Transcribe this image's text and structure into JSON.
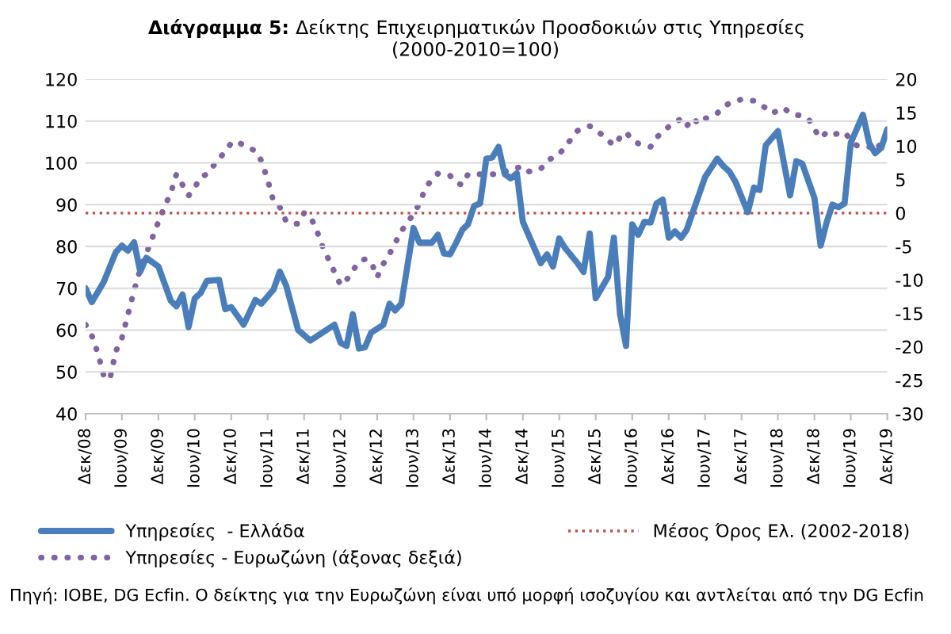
{
  "chart_data": {
    "type": "line",
    "title": "Διάγραμμα 5: Δείκτης Επιχειρηματικών Προσδοκιών στις Υπηρεσίες",
    "subtitle": "(2000-2010=100)",
    "annotations": [
      "Πηγή: IOBE, DG Ecfin. Ο δείκτης για την Ευρωζώνη είναι υπό μορφή ισοζυγίου και αντλείται από την DG Ecfin"
    ],
    "series": [
      {
        "name": "Υπηρεσίες  - Ελλάδα",
        "color": "#4a7ebb",
        "line_style": "solid",
        "x": [
          "2008-12",
          "2009-01",
          "2009-03",
          "2009-05",
          "2009-06",
          "2009-07",
          "2009-08",
          "2009-09",
          "2009-10",
          "2009-12",
          "2010-02",
          "2010-03",
          "2010-04",
          "2010-05",
          "2010-06",
          "2010-07",
          "2010-08",
          "2010-10",
          "2010-11",
          "2010-12",
          "2011-02",
          "2011-04",
          "2011-05",
          "2011-07",
          "2011-08",
          "2011-09",
          "2011-11",
          "2012-01",
          "2012-05",
          "2012-06",
          "2012-07",
          "2012-08",
          "2012-09",
          "2012-10",
          "2012-11",
          "2013-01",
          "2013-02",
          "2013-03",
          "2013-04",
          "2013-06",
          "2013-07",
          "2013-09",
          "2013-10",
          "2013-11",
          "2013-12",
          "2014-01",
          "2014-02",
          "2014-03",
          "2014-04",
          "2014-05",
          "2014-06",
          "2014-07",
          "2014-08",
          "2014-09",
          "2014-10",
          "2014-11",
          "2014-12",
          "2015-03",
          "2015-04",
          "2015-05",
          "2015-06",
          "2015-07",
          "2015-09",
          "2015-10",
          "2015-11",
          "2015-12",
          "2016-02",
          "2016-03",
          "2016-04",
          "2016-05",
          "2016-06",
          "2016-07",
          "2016-08",
          "2016-09",
          "2016-10",
          "2016-11",
          "2016-12",
          "2017-01",
          "2017-02",
          "2017-03",
          "2017-06",
          "2017-08",
          "2017-09",
          "2017-10",
          "2017-11",
          "2018-01",
          "2018-02",
          "2018-03",
          "2018-04",
          "2018-06",
          "2018-08",
          "2018-09",
          "2018-10",
          "2018-12",
          "2019-01",
          "2019-02",
          "2019-03",
          "2019-04",
          "2019-05",
          "2019-06",
          "2019-08",
          "2019-09",
          "2019-10",
          "2019-11",
          "2019-12"
        ],
        "values": [
          70,
          66.7,
          71.4,
          78.6,
          80.2,
          79,
          81,
          74,
          77.3,
          75.2,
          67,
          65.7,
          68.5,
          60.7,
          67.6,
          68.9,
          71.8,
          72,
          65,
          65.5,
          61.3,
          67.2,
          66.3,
          69.7,
          74,
          70.8,
          60,
          57.5,
          61.3,
          56.9,
          56.2,
          63.8,
          55.6,
          55.9,
          59.4,
          61.3,
          66.3,
          64.7,
          66.3,
          84.4,
          80.9,
          80.9,
          82.8,
          78.3,
          78.1,
          80.9,
          84,
          85.3,
          89.7,
          90.3,
          101,
          101.3,
          103.8,
          97.3,
          96.3,
          97.5,
          85.9,
          76,
          78.1,
          75.2,
          81.9,
          79.6,
          76,
          73.9,
          83.1,
          67.6,
          72.7,
          82.1,
          63.8,
          56.2,
          85.3,
          82.8,
          85.9,
          85.7,
          90.3,
          91.2,
          82.1,
          83.6,
          82.1,
          84,
          96.6,
          101,
          99.2,
          97.9,
          95.4,
          88.2,
          94.1,
          93.5,
          104.2,
          107.6,
          92.2,
          100.4,
          99.8,
          91.6,
          80.2,
          85.9,
          90,
          89.4,
          90.3,
          104.8,
          111.5,
          104.8,
          102.3,
          103.6,
          108
        ]
      },
      {
        "name": "Υπηρεσίες - Ευρωζώνη (άξονας δεξιά)",
        "color": "#8064a2",
        "line_style": "dotted",
        "axis": "y2",
        "x": [
          "2008-12",
          "2009-01",
          "2009-02",
          "2009-03",
          "2009-04",
          "2009-05",
          "2009-06",
          "2009-07",
          "2009-08",
          "2009-09",
          "2009-10",
          "2009-11",
          "2009-12",
          "2010-01",
          "2010-02",
          "2010-03",
          "2010-04",
          "2010-05",
          "2010-06",
          "2010-07",
          "2010-08",
          "2010-09",
          "2010-10",
          "2010-11",
          "2010-12",
          "2011-01",
          "2011-02",
          "2011-03",
          "2011-04",
          "2011-05",
          "2011-06",
          "2011-07",
          "2011-08",
          "2011-09",
          "2011-10",
          "2011-11",
          "2011-12",
          "2012-01",
          "2012-02",
          "2012-03",
          "2012-04",
          "2012-05",
          "2012-06",
          "2012-07",
          "2012-08",
          "2012-09",
          "2012-10",
          "2012-11",
          "2012-12",
          "2013-01",
          "2013-02",
          "2013-03",
          "2013-04",
          "2013-05",
          "2013-06",
          "2013-07",
          "2013-08",
          "2013-09",
          "2013-10",
          "2013-11",
          "2013-12",
          "2014-01",
          "2014-02",
          "2014-03",
          "2014-05",
          "2014-08",
          "2014-09",
          "2014-12",
          "2015-01",
          "2015-03",
          "2015-04",
          "2015-06",
          "2015-07",
          "2015-09",
          "2015-11",
          "2015-12",
          "2016-03",
          "2016-04",
          "2016-05",
          "2016-06",
          "2016-07",
          "2016-09",
          "2016-10",
          "2016-11",
          "2016-12",
          "2017-02",
          "2017-03",
          "2017-04",
          "2017-05",
          "2017-06",
          "2017-08",
          "2017-09",
          "2017-10",
          "2017-12",
          "2018-01",
          "2018-02",
          "2018-04",
          "2018-05",
          "2018-07",
          "2018-08",
          "2018-10",
          "2018-11",
          "2018-12",
          "2019-01",
          "2019-02",
          "2019-03",
          "2019-05",
          "2019-06",
          "2019-07",
          "2019-09",
          "2019-10",
          "2019-11",
          "2019-12"
        ],
        "values": [
          -16.7,
          -18.3,
          -21,
          -24.2,
          -24.9,
          -20.7,
          -18.7,
          -15.2,
          -11.6,
          -8.4,
          -6.1,
          -3.7,
          -1.3,
          1,
          3,
          5.8,
          4.2,
          2.6,
          3.8,
          5.4,
          5.8,
          7,
          8.2,
          9.1,
          10.5,
          10.7,
          10.1,
          9.7,
          9.3,
          7.8,
          5,
          1.7,
          0.9,
          -1.2,
          -1.6,
          -1.6,
          0,
          -0.5,
          -2.5,
          -4.9,
          -6.9,
          -8.8,
          -10.8,
          -10,
          -8.6,
          -7.3,
          -6.9,
          -7.3,
          -9.6,
          -7.6,
          -6.1,
          -4.5,
          -2.7,
          -1.5,
          -0.1,
          1.4,
          3.8,
          5,
          5.9,
          5.6,
          5.6,
          4.5,
          4.2,
          5.8,
          5.8,
          5.8,
          6.2,
          7,
          6.2,
          6.6,
          7.8,
          8.8,
          9.9,
          12.3,
          13,
          12.5,
          10.1,
          11.3,
          12.1,
          10.9,
          10.4,
          9.9,
          11.3,
          12.1,
          12.9,
          14.1,
          13,
          14.2,
          13.3,
          14.1,
          14.9,
          15.9,
          16.4,
          17,
          16.8,
          16.8,
          15.7,
          14.9,
          15.7,
          14.9,
          14.5,
          14.1,
          12.5,
          11.2,
          12.1,
          11.7,
          12.1,
          10.9,
          10.1,
          9.9,
          9.3,
          10.5,
          11.3
        ]
      }
    ],
    "ref_lines": [
      {
        "axis": "y",
        "value": 88,
        "label": "Μέσος Όρος Ελ. (2002-2018)",
        "color": "#c0504d",
        "line_style": "dotted"
      }
    ],
    "xlim": [
      "2008-12",
      "2019-12"
    ],
    "xticks": [
      {
        "value": "2008-12",
        "label": "Δεκ/08"
      },
      {
        "value": "2009-06",
        "label": "Ιουν/09"
      },
      {
        "value": "2009-12",
        "label": "Δεκ/09"
      },
      {
        "value": "2010-06",
        "label": "Ιουν/10"
      },
      {
        "value": "2010-12",
        "label": "Δεκ/10"
      },
      {
        "value": "2011-06",
        "label": "Ιουν/11"
      },
      {
        "value": "2011-12",
        "label": "Δεκ/11"
      },
      {
        "value": "2012-06",
        "label": "Ιουν/12"
      },
      {
        "value": "2012-12",
        "label": "Δεκ/12"
      },
      {
        "value": "2013-06",
        "label": "Ιουν/13"
      },
      {
        "value": "2013-12",
        "label": "Δεκ/13"
      },
      {
        "value": "2014-06",
        "label": "Ιουν/14"
      },
      {
        "value": "2014-12",
        "label": "Δεκ/14"
      },
      {
        "value": "2015-06",
        "label": "Ιουν/15"
      },
      {
        "value": "2015-12",
        "label": "Δεκ/15"
      },
      {
        "value": "2016-06",
        "label": "Ιουν/16"
      },
      {
        "value": "2016-12",
        "label": "Δεκ/16"
      },
      {
        "value": "2017-06",
        "label": "Ιουν/17"
      },
      {
        "value": "2017-12",
        "label": "Δεκ/17"
      },
      {
        "value": "2018-06",
        "label": "Ιουν/18"
      },
      {
        "value": "2018-12",
        "label": "Δεκ/18"
      },
      {
        "value": "2019-06",
        "label": "Ιουν/19"
      },
      {
        "value": "2019-12",
        "label": "Δεκ/19"
      }
    ],
    "ylim": [
      40,
      120
    ],
    "yticks": [
      40,
      50,
      60,
      70,
      80,
      90,
      100,
      110,
      120
    ],
    "y2lim": [
      -30,
      20
    ],
    "y2ticks": [
      -30,
      -25,
      -20,
      -15,
      -10,
      -5,
      0,
      5,
      10,
      15,
      20
    ],
    "grid": "y",
    "legend": "bottom",
    "marker": "none"
  }
}
